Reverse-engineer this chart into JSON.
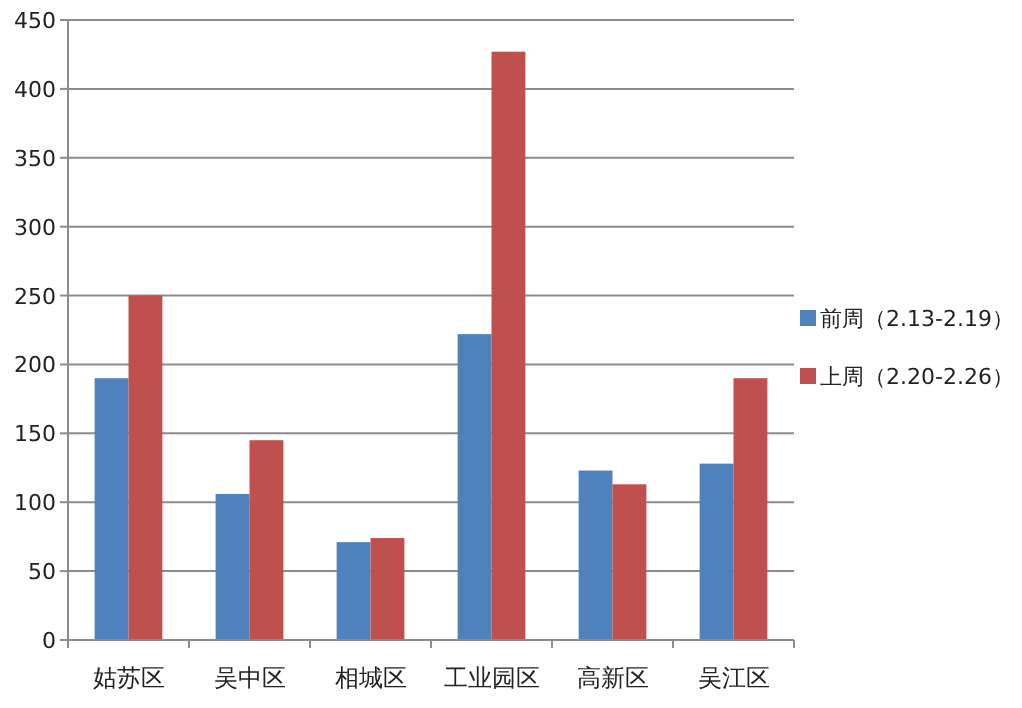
{
  "chart_data": {
    "type": "bar",
    "categories": [
      "姑苏区",
      "吴中区",
      "相城区",
      "工业园区",
      "高新区",
      "吴江区"
    ],
    "series": [
      {
        "name": "前周（2.13-2.19）",
        "color": "#4f81bd",
        "values": [
          190,
          106,
          71,
          222,
          123,
          128
        ]
      },
      {
        "name": "上周（2.20-2.26）",
        "color": "#c0504d",
        "values": [
          250,
          145,
          74,
          427,
          113,
          190
        ]
      }
    ],
    "ylim": [
      0,
      450
    ],
    "yticks": [
      0,
      50,
      100,
      150,
      200,
      250,
      300,
      350,
      400,
      450
    ],
    "grid": "y",
    "legend": "right"
  }
}
